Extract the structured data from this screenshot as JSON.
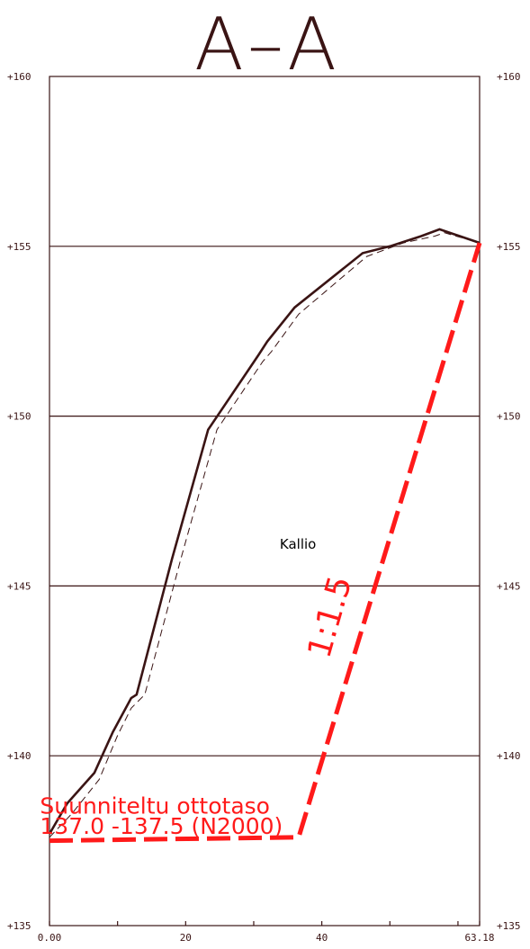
{
  "section_title": "A–A",
  "colors": {
    "ink": "#3a1414",
    "design": "#ff1a1a",
    "grid": "#3a1414"
  },
  "chart_data": {
    "type": "line",
    "title": "A–A",
    "xlim": [
      0,
      63.18
    ],
    "ylim": [
      135,
      160
    ],
    "x_tick_labels": [
      {
        "value": 0,
        "label": "0.00"
      },
      {
        "value": 20,
        "label": "20"
      },
      {
        "value": 40,
        "label": "40"
      },
      {
        "value": 63.18,
        "label": "63.18"
      }
    ],
    "x_minor_ticks": [
      10,
      30,
      50,
      60
    ],
    "y_tick_labels": [
      {
        "value": 160,
        "label": "+160"
      },
      {
        "value": 155,
        "label": "+155"
      },
      {
        "value": 150,
        "label": "+150"
      },
      {
        "value": 145,
        "label": "+145"
      },
      {
        "value": 140,
        "label": "+140"
      },
      {
        "value": 135,
        "label": "+135"
      }
    ],
    "grid_lines_y": [
      155,
      150,
      145,
      140
    ],
    "series": [
      {
        "style": "solid",
        "points": [
          [
            0,
            137.7
          ],
          [
            2.6,
            138.6
          ],
          [
            6.6,
            139.5
          ],
          [
            9.3,
            140.7
          ],
          [
            12.0,
            141.7
          ],
          [
            12.8,
            141.8
          ],
          [
            18.0,
            145.8
          ],
          [
            23.3,
            149.6
          ],
          [
            30.7,
            151.8
          ],
          [
            32.0,
            152.2
          ],
          [
            36.0,
            153.2
          ],
          [
            46.0,
            154.8
          ],
          [
            50.0,
            155.0
          ],
          [
            54.6,
            155.3
          ],
          [
            57.3,
            155.5
          ],
          [
            63.18,
            155.1
          ]
        ]
      },
      {
        "style": "dashed",
        "points": [
          [
            0,
            137.6
          ],
          [
            3.3,
            138.3
          ],
          [
            7.3,
            139.3
          ],
          [
            10.0,
            140.6
          ],
          [
            12.0,
            141.4
          ],
          [
            14.0,
            141.8
          ],
          [
            19.3,
            145.8
          ],
          [
            24.6,
            149.6
          ],
          [
            31.3,
            151.6
          ],
          [
            32.6,
            151.9
          ],
          [
            36.6,
            153.0
          ],
          [
            46.6,
            154.7
          ],
          [
            52.0,
            155.1
          ],
          [
            56.6,
            155.3
          ],
          [
            58.0,
            155.4
          ],
          [
            63.18,
            155.1
          ]
        ]
      },
      {
        "style": "design",
        "points": [
          [
            0,
            137.5
          ],
          [
            36.6,
            137.6
          ],
          [
            63.18,
            155.1
          ]
        ]
      }
    ],
    "annotations": {
      "rock_label": {
        "text": "Kallio",
        "x": 36.5,
        "y": 146.1
      },
      "slope_label": {
        "text": "1:1.5",
        "x": 42.7,
        "y": 144.0,
        "rotate": -74
      },
      "design_level_line1": {
        "text": "Suunniteltu ottotaso",
        "x": -1.4,
        "y": 138.3
      },
      "design_level_line2": {
        "text": "137.0 -137.5 (N2000)",
        "x": -1.4,
        "y": 137.7
      }
    }
  }
}
